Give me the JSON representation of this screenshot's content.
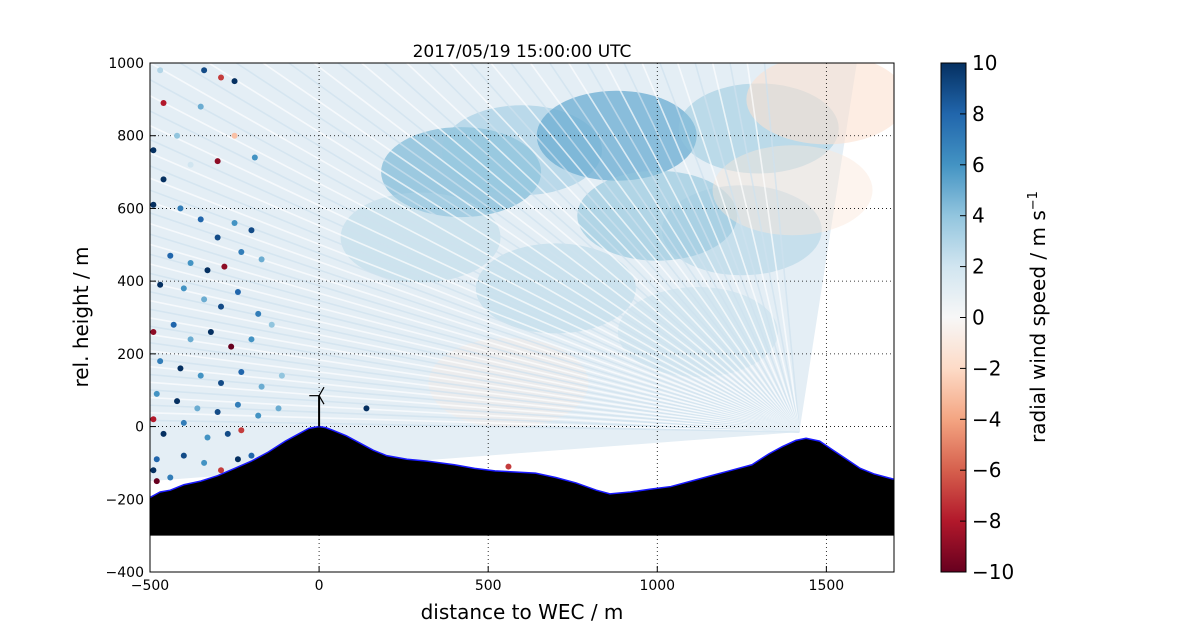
{
  "chart_data": {
    "type": "scatter",
    "title": "2017/05/19 15:00:00 UTC",
    "xlabel": "distance to WEC / m",
    "ylabel": "rel. height / m",
    "xlim": [
      -500,
      1700
    ],
    "ylim": [
      -400,
      1000
    ],
    "xticks": [
      "−500",
      "0",
      "500",
      "1000",
      "1500"
    ],
    "xtick_values": [
      -500,
      0,
      500,
      1000,
      1500
    ],
    "yticks": [
      "−400",
      "−200",
      "0",
      "200",
      "400",
      "600",
      "800",
      "1000"
    ],
    "ytick_values": [
      -400,
      -200,
      0,
      200,
      400,
      600,
      800,
      1000
    ],
    "grid": "dotted",
    "colorbar": {
      "label": "radial wind speed / m s",
      "label_superscript": "−1",
      "range": [
        -10,
        10
      ],
      "colormap": "RdBu",
      "ticks": [
        "10",
        "8",
        "6",
        "4",
        "2",
        "0",
        "−2",
        "−4",
        "−6",
        "−8",
        "−10"
      ],
      "tick_values": [
        10,
        8,
        6,
        4,
        2,
        0,
        -2,
        -4,
        -6,
        -8,
        -10
      ]
    },
    "lidar_origin": [
      1420,
      -15
    ],
    "scan_sector_x_range": [
      -500,
      1590
    ],
    "terrain": {
      "fill_color": "#000000",
      "outline_color": "#1a1aff",
      "floor": -300,
      "profile_x": [
        -500,
        -470,
        -440,
        -400,
        -350,
        -300,
        -250,
        -200,
        -150,
        -100,
        -60,
        -30,
        0,
        20,
        40,
        80,
        120,
        160,
        200,
        260,
        320,
        400,
        460,
        520,
        580,
        640,
        700,
        760,
        820,
        860,
        920,
        980,
        1040,
        1100,
        1160,
        1220,
        1280,
        1330,
        1370,
        1410,
        1440,
        1480,
        1520,
        1560,
        1600,
        1640,
        1680,
        1700
      ],
      "profile_y": [
        -195,
        -180,
        -175,
        -160,
        -150,
        -135,
        -115,
        -95,
        -70,
        -40,
        -20,
        -5,
        0,
        -3,
        -10,
        -25,
        -45,
        -65,
        -80,
        -90,
        -95,
        -105,
        -115,
        -122,
        -125,
        -128,
        -140,
        -155,
        -175,
        -185,
        -180,
        -172,
        -165,
        -150,
        -135,
        -120,
        -105,
        -75,
        -55,
        -38,
        -32,
        -40,
        -65,
        -90,
        -115,
        -130,
        -140,
        -145
      ]
    },
    "turbine": {
      "x": 0,
      "hub_height": 85,
      "rotor_radius": 30,
      "color": "#000000"
    },
    "speed_field_note": "",
    "sample_points": [
      {
        "x": -470,
        "y": 980,
        "v": 3
      },
      {
        "x": -340,
        "y": 980,
        "v": 9
      },
      {
        "x": -290,
        "y": 960,
        "v": -7
      },
      {
        "x": -460,
        "y": 890,
        "v": -8
      },
      {
        "x": -250,
        "y": 950,
        "v": 10
      },
      {
        "x": -350,
        "y": 880,
        "v": 5
      },
      {
        "x": -420,
        "y": 800,
        "v": 4
      },
      {
        "x": -490,
        "y": 760,
        "v": 10
      },
      {
        "x": -380,
        "y": 720,
        "v": 2
      },
      {
        "x": -460,
        "y": 680,
        "v": 10
      },
      {
        "x": -300,
        "y": 730,
        "v": -9
      },
      {
        "x": -250,
        "y": 800,
        "v": -3
      },
      {
        "x": -190,
        "y": 740,
        "v": 6
      },
      {
        "x": -490,
        "y": 610,
        "v": 10
      },
      {
        "x": -410,
        "y": 600,
        "v": 7
      },
      {
        "x": -350,
        "y": 570,
        "v": 8
      },
      {
        "x": -300,
        "y": 520,
        "v": 9
      },
      {
        "x": -250,
        "y": 560,
        "v": 6
      },
      {
        "x": -200,
        "y": 540,
        "v": 9
      },
      {
        "x": -440,
        "y": 470,
        "v": 8
      },
      {
        "x": -380,
        "y": 450,
        "v": 6
      },
      {
        "x": -330,
        "y": 430,
        "v": 10
      },
      {
        "x": -280,
        "y": 440,
        "v": -9
      },
      {
        "x": -230,
        "y": 480,
        "v": 7
      },
      {
        "x": -170,
        "y": 460,
        "v": 5
      },
      {
        "x": -470,
        "y": 390,
        "v": 10
      },
      {
        "x": -400,
        "y": 380,
        "v": 6
      },
      {
        "x": -340,
        "y": 350,
        "v": 5
      },
      {
        "x": -290,
        "y": 330,
        "v": 9
      },
      {
        "x": -240,
        "y": 370,
        "v": 8
      },
      {
        "x": -180,
        "y": 310,
        "v": 7
      },
      {
        "x": -490,
        "y": 260,
        "v": -9
      },
      {
        "x": -430,
        "y": 280,
        "v": 8
      },
      {
        "x": -380,
        "y": 240,
        "v": 5
      },
      {
        "x": -320,
        "y": 260,
        "v": 10
      },
      {
        "x": -260,
        "y": 220,
        "v": -10
      },
      {
        "x": -200,
        "y": 240,
        "v": 6
      },
      {
        "x": -140,
        "y": 280,
        "v": 4
      },
      {
        "x": -470,
        "y": 180,
        "v": 7
      },
      {
        "x": -410,
        "y": 160,
        "v": 10
      },
      {
        "x": -350,
        "y": 140,
        "v": 6
      },
      {
        "x": -290,
        "y": 120,
        "v": 9
      },
      {
        "x": -230,
        "y": 150,
        "v": 8
      },
      {
        "x": -170,
        "y": 110,
        "v": 5
      },
      {
        "x": -110,
        "y": 140,
        "v": 4
      },
      {
        "x": -480,
        "y": 90,
        "v": 6
      },
      {
        "x": -420,
        "y": 70,
        "v": 10
      },
      {
        "x": -360,
        "y": 50,
        "v": 5
      },
      {
        "x": -300,
        "y": 40,
        "v": 9
      },
      {
        "x": -240,
        "y": 60,
        "v": 7
      },
      {
        "x": -180,
        "y": 30,
        "v": 6
      },
      {
        "x": -120,
        "y": 50,
        "v": 5
      },
      {
        "x": 140,
        "y": 50,
        "v": 10
      },
      {
        "x": -490,
        "y": 20,
        "v": -8
      },
      {
        "x": -460,
        "y": -20,
        "v": 10
      },
      {
        "x": -400,
        "y": 10,
        "v": 7
      },
      {
        "x": -330,
        "y": -30,
        "v": 6
      },
      {
        "x": -270,
        "y": -20,
        "v": 9
      },
      {
        "x": -230,
        "y": -10,
        "v": -7
      },
      {
        "x": -480,
        "y": -90,
        "v": 8
      },
      {
        "x": -400,
        "y": -80,
        "v": 9
      },
      {
        "x": -340,
        "y": -100,
        "v": 6
      },
      {
        "x": -290,
        "y": -120,
        "v": -7
      },
      {
        "x": -240,
        "y": -90,
        "v": 10
      },
      {
        "x": -480,
        "y": -150,
        "v": -10
      },
      {
        "x": -440,
        "y": -140,
        "v": 7
      },
      {
        "x": -200,
        "y": -80,
        "v": 8
      },
      {
        "x": 560,
        "y": -110,
        "v": -7
      },
      {
        "x": -490,
        "y": -120,
        "v": 10
      }
    ]
  }
}
